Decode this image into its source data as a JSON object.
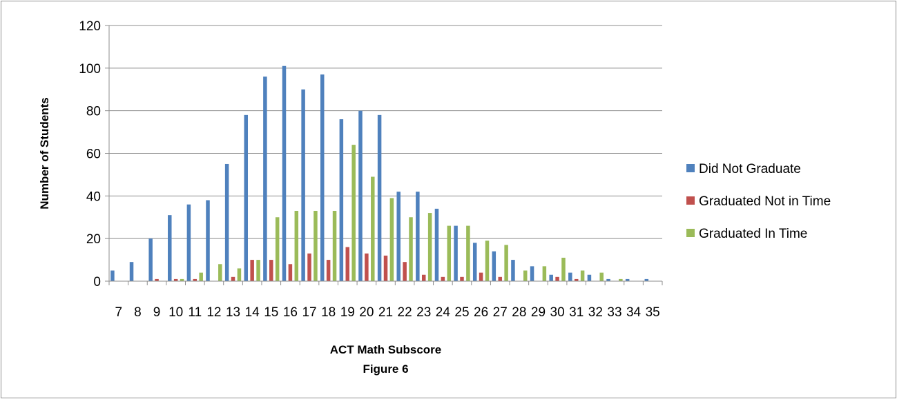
{
  "chart_data": {
    "type": "bar",
    "xlabel": "ACT Math Subscore",
    "caption": "Figure 6",
    "ylabel": "Number of Students",
    "ylim": [
      0,
      120
    ],
    "yticks": [
      0,
      20,
      40,
      60,
      80,
      100,
      120
    ],
    "grid": true,
    "legend_position": "right",
    "categories": [
      "7",
      "8",
      "9",
      "10",
      "11",
      "12",
      "13",
      "14",
      "15",
      "16",
      "17",
      "18",
      "19",
      "20",
      "21",
      "22",
      "23",
      "24",
      "25",
      "26",
      "27",
      "28",
      "29",
      "30",
      "31",
      "32",
      "33",
      "34",
      "35"
    ],
    "series": [
      {
        "name": "Did Not Graduate",
        "color": "#4F81BD",
        "values": [
          5,
          9,
          20,
          31,
          36,
          38,
          55,
          78,
          96,
          101,
          90,
          97,
          76,
          80,
          78,
          42,
          42,
          34,
          26,
          18,
          14,
          10,
          7,
          3,
          4,
          3,
          1,
          1,
          1
        ]
      },
      {
        "name": "Graduated Not in Time",
        "color": "#C0504D",
        "values": [
          0,
          0,
          1,
          1,
          1,
          0,
          2,
          10,
          10,
          8,
          13,
          10,
          16,
          13,
          12,
          9,
          3,
          2,
          2,
          4,
          2,
          0,
          0,
          2,
          1,
          0,
          0,
          0,
          0
        ]
      },
      {
        "name": "Graduated In Time",
        "color": "#9BBB59",
        "values": [
          0,
          0,
          0,
          1,
          4,
          8,
          6,
          10,
          30,
          33,
          33,
          33,
          64,
          49,
          39,
          30,
          32,
          26,
          26,
          19,
          17,
          5,
          7,
          11,
          5,
          4,
          1,
          0,
          0
        ]
      }
    ]
  }
}
